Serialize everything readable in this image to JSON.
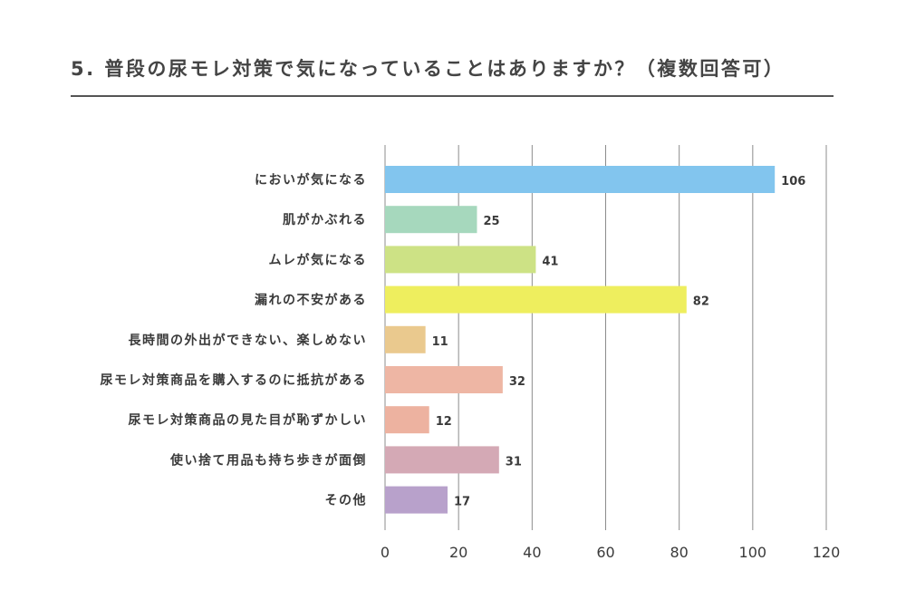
{
  "title": "5. 普段の尿モレ対策で気になっていることはありますか？（複数回答可）",
  "chart_data": {
    "type": "bar",
    "orientation": "horizontal",
    "title": "5. 普段の尿モレ対策で気になっていることはありますか？（複数回答可）",
    "xlabel": "",
    "ylabel": "",
    "xlim": [
      0,
      120
    ],
    "x_ticks": [
      0,
      20,
      40,
      60,
      80,
      100,
      120
    ],
    "grid": true,
    "categories": [
      "においが気になる",
      "肌がかぶれる",
      "ムレが気になる",
      "漏れの不安がある",
      "長時間の外出ができない、楽しめない",
      "尿モレ対策商品を購入するのに抵抗がある",
      "尿モレ対策商品の見た目が恥ずかしい",
      "使い捨て用品も持ち歩きが面倒",
      "その他"
    ],
    "values": [
      106,
      25,
      41,
      82,
      11,
      32,
      12,
      31,
      17
    ],
    "colors": [
      "#82c5ee",
      "#a6d8bd",
      "#cde285",
      "#eeee5e",
      "#eac98e",
      "#eeb6a4",
      "#edb2a0",
      "#d4a9b5",
      "#b8a1cb"
    ]
  }
}
